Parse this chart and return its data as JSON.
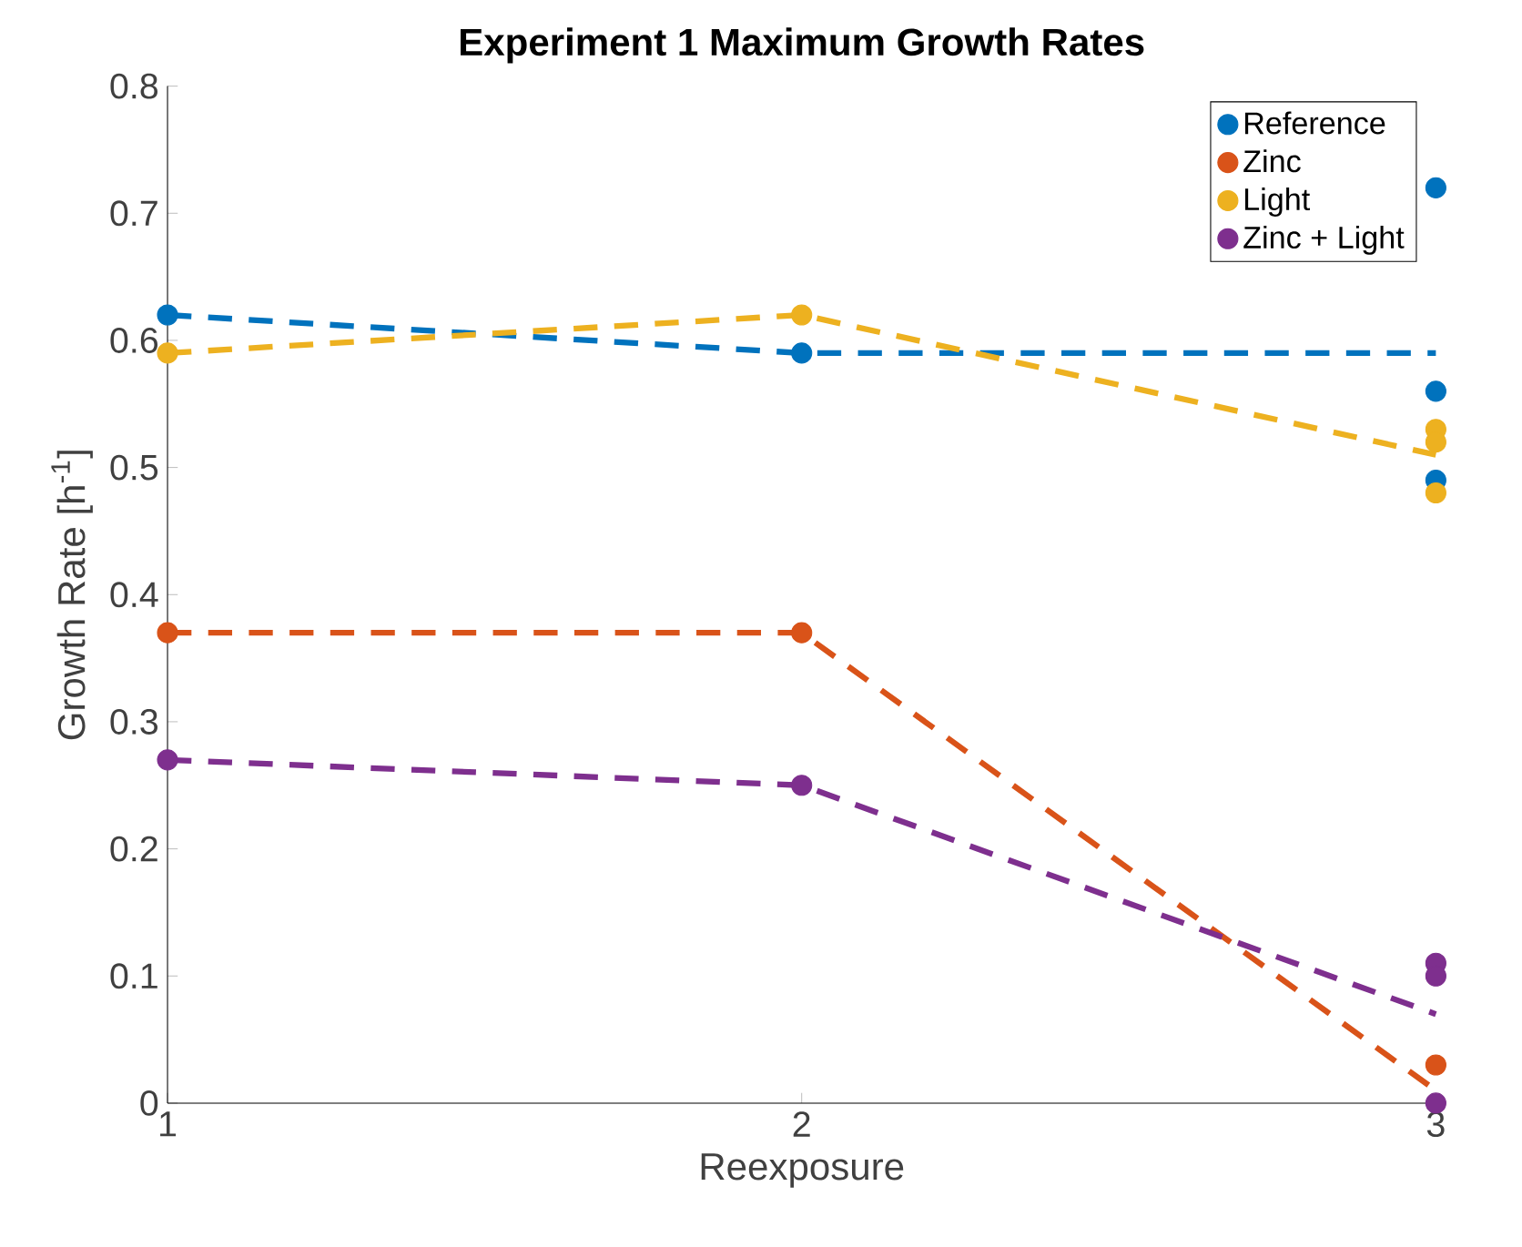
{
  "chart_data": {
    "type": "line",
    "title": "**Experiment 1 Maximum Growth Rates**",
    "xlabel": "Reexposure",
    "ylabel": "Growth Rate [h$^{-1}$]",
    "xlim": [
      1,
      3
    ],
    "xticks": [
      1,
      2,
      3
    ],
    "ylim": [
      0,
      0.8
    ],
    "yticks": [
      0,
      0.1,
      0.2,
      0.3,
      0.4,
      0.5,
      0.6,
      0.7,
      0.8
    ],
    "legend": "top right",
    "series": [
      {
        "color": "#0072bd",
        "line_style": "dashed",
        "marker": "none",
        "x": [
          1,
          2,
          3
        ],
        "values": [
          0.62,
          0.59,
          0.59
        ]
      },
      {
        "color": "#d95319",
        "line_style": "dashed",
        "marker": "none",
        "x": [
          1,
          2,
          3
        ],
        "values": [
          0.37,
          0.37,
          0.01
        ]
      },
      {
        "color": "#edb120",
        "line_style": "dashed",
        "marker": "none",
        "x": [
          1,
          2,
          3
        ],
        "values": [
          0.59,
          0.62,
          0.51
        ]
      },
      {
        "color": "#7e2f8e",
        "line_style": "dashed",
        "marker": "none",
        "x": [
          1,
          2,
          3
        ],
        "values": [
          0.27,
          0.25,
          0.07
        ]
      },
      {
        "type": "scatter",
        "name": "Reference",
        "color": "#0072bd",
        "marker": "circle",
        "x": [
          1,
          2,
          3,
          3,
          3
        ],
        "values": [
          0.62,
          0.59,
          0.72,
          0.56,
          0.49
        ]
      },
      {
        "type": "scatter",
        "name": "Zinc",
        "color": "#d95319",
        "marker": "circle",
        "x": [
          1,
          2,
          3
        ],
        "values": [
          0.37,
          0.37,
          0.03
        ]
      },
      {
        "type": "scatter",
        "name": "Light",
        "color": "#edb120",
        "marker": "circle",
        "x": [
          1,
          2,
          3,
          3,
          3
        ],
        "values": [
          0.59,
          0.62,
          0.53,
          0.52,
          0.48
        ]
      },
      {
        "type": "scatter",
        "name": "Zinc + Light",
        "color": "#7e2f8e",
        "marker": "circle",
        "x": [
          1,
          2,
          3,
          3,
          3
        ],
        "values": [
          0.27,
          0.25,
          0.11,
          0.1,
          0.0
        ]
      }
    ]
  }
}
